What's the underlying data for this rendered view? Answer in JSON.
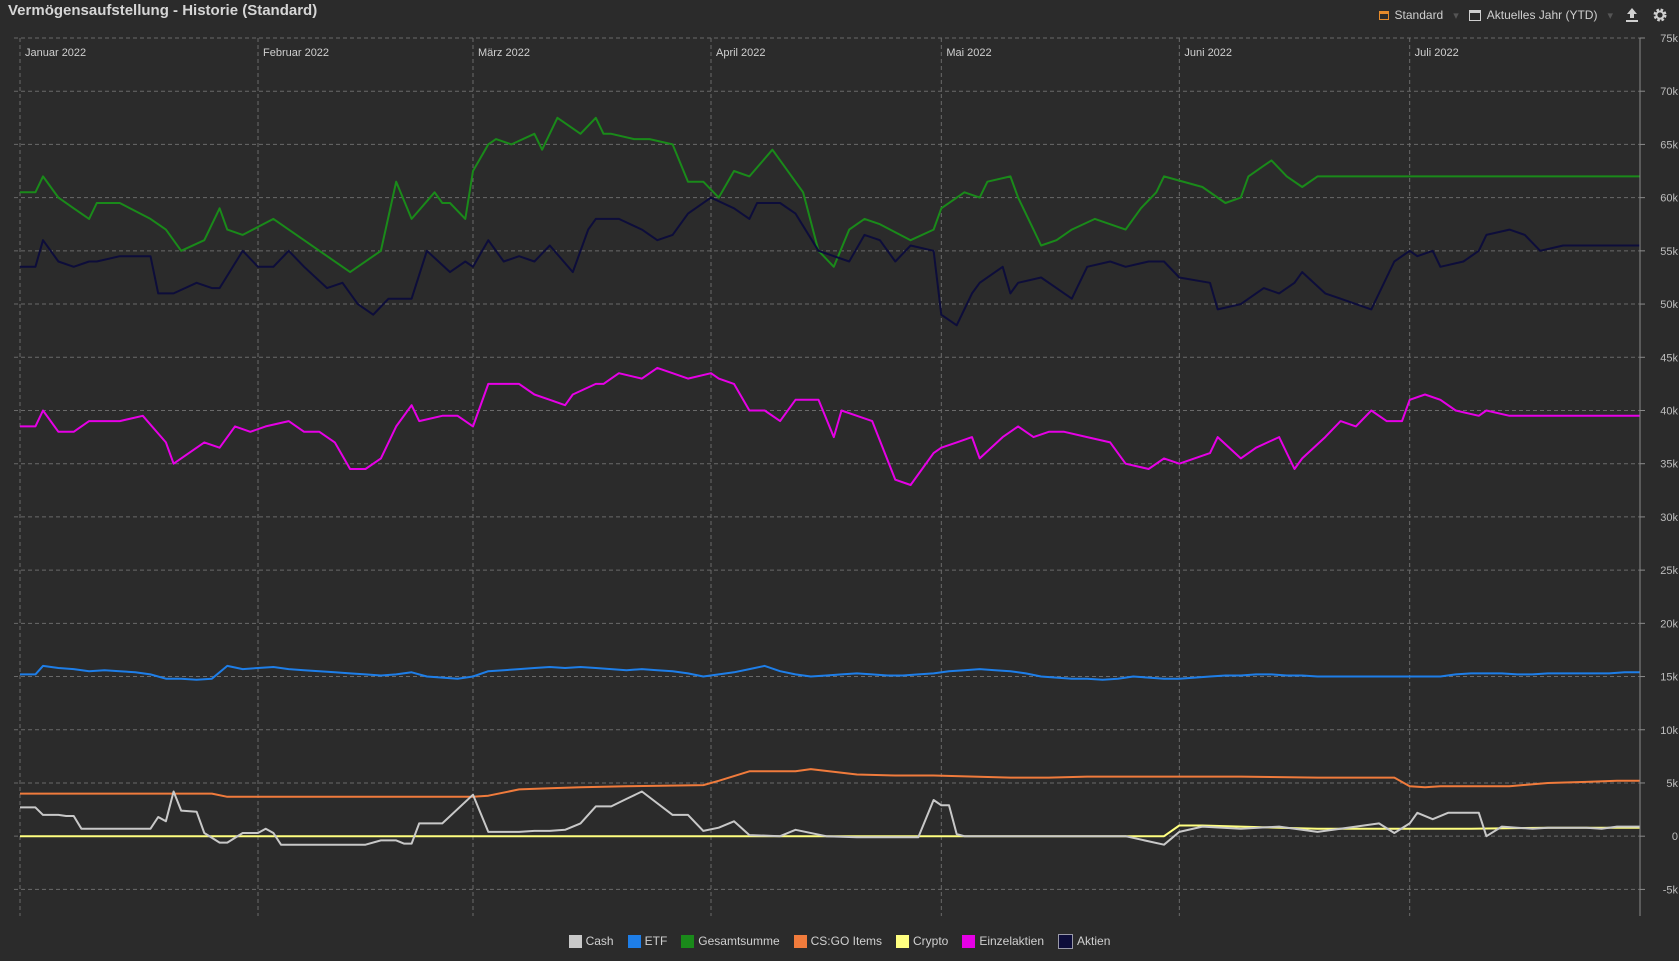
{
  "header": {
    "title": "Vermögensaufstellung - Historie (Standard)",
    "view_label": "Standard",
    "period_label": "Aktuelles Jahr (YTD)",
    "export_icon": "upload-icon",
    "settings_icon": "gear-icon"
  },
  "colors": {
    "background": "#2b2b2b",
    "grid": "#6a6a6a",
    "accent": "#e58a2b"
  },
  "chart_data": {
    "type": "line",
    "title": "Vermögensaufstellung - Historie (Standard)",
    "x_unit": "day of year 2022",
    "x_range": [
      1,
      212
    ],
    "ylim": [
      -7500,
      75000
    ],
    "yticks": [
      -5000,
      0,
      5000,
      10000,
      15000,
      20000,
      25000,
      30000,
      35000,
      40000,
      45000,
      50000,
      55000,
      60000,
      65000,
      70000,
      75000
    ],
    "ytick_labels": [
      "-5k",
      "0",
      "5k",
      "10k",
      "15k",
      "20k",
      "25k",
      "30k",
      "35k",
      "40k",
      "45k",
      "50k",
      "55k",
      "60k",
      "65k",
      "70k",
      "75k"
    ],
    "months": [
      {
        "label": "Januar 2022",
        "day": 1
      },
      {
        "label": "Februar 2022",
        "day": 32
      },
      {
        "label": "März 2022",
        "day": 60
      },
      {
        "label": "April 2022",
        "day": 91
      },
      {
        "label": "Mai 2022",
        "day": 121
      },
      {
        "label": "Juni 2022",
        "day": 152
      },
      {
        "label": "Juli 2022",
        "day": 182
      }
    ],
    "grid": true,
    "legend_position": "bottom-center",
    "series": [
      {
        "name": "Gesamtsumme",
        "color": "#1a8a1a",
        "x": [
          1,
          3,
          4,
          6,
          8,
          10,
          11,
          14,
          18,
          20,
          22,
          25,
          27,
          28,
          30,
          34,
          36,
          38,
          40,
          44,
          48,
          50,
          52,
          55,
          56,
          57,
          59,
          60,
          62,
          63,
          65,
          68,
          69,
          71,
          74,
          76,
          77,
          78,
          81,
          83,
          86,
          88,
          90,
          92,
          94,
          96,
          99,
          103,
          105,
          107,
          109,
          111,
          113,
          117,
          120,
          121,
          124,
          126,
          127,
          130,
          131,
          133,
          134,
          136,
          138,
          141,
          145,
          147,
          149,
          150,
          155,
          158,
          160,
          161,
          163,
          164,
          166,
          168,
          170,
          173,
          174,
          176,
          178,
          181,
          182,
          184,
          186,
          189,
          191,
          192,
          194,
          195,
          197,
          199,
          202,
          205,
          207,
          209,
          211,
          212
        ],
        "y": [
          60500,
          60500,
          62000,
          60000,
          59000,
          58000,
          59500,
          59500,
          58000,
          57000,
          55000,
          56000,
          59000,
          57000,
          56500,
          58000,
          57000,
          56000,
          55000,
          53000,
          55000,
          61500,
          58000,
          60500,
          59500,
          59500,
          58000,
          62500,
          65000,
          65500,
          65000,
          66000,
          64500,
          67500,
          66000,
          67500,
          66000,
          66000,
          65500,
          65500,
          65000,
          61500,
          61500,
          60000,
          62500,
          62000,
          64500,
          60500,
          55000,
          53500,
          57000,
          58000,
          57500,
          56000,
          57000,
          59000,
          60500,
          60000,
          61500,
          62000,
          60000,
          57000,
          55500,
          56000,
          57000,
          58000,
          57000,
          59000,
          60500,
          62000,
          61000,
          59500,
          60000,
          62000,
          63000,
          63500,
          62000,
          61000,
          62000,
          62000,
          62000,
          62000,
          62000,
          62000,
          62000,
          62000,
          62000,
          62000,
          62000,
          62000,
          62000,
          62000,
          62000,
          62000,
          62000,
          62000,
          62000,
          62000,
          62000,
          62000
        ]
      },
      {
        "name": "Aktien",
        "color": "#0d0d3a",
        "x": [
          1,
          3,
          4,
          6,
          8,
          10,
          11,
          14,
          18,
          19,
          21,
          24,
          26,
          27,
          30,
          32,
          34,
          36,
          38,
          41,
          43,
          45,
          47,
          49,
          52,
          54,
          57,
          59,
          60,
          62,
          64,
          66,
          68,
          70,
          73,
          75,
          76,
          79,
          82,
          84,
          86,
          88,
          91,
          94,
          96,
          97,
          100,
          102,
          105,
          109,
          111,
          113,
          115,
          117,
          120,
          121,
          123,
          125,
          126,
          129,
          130,
          131,
          134,
          136,
          138,
          140,
          143,
          145,
          148,
          150,
          152,
          156,
          157,
          160,
          163,
          165,
          167,
          168,
          171,
          173,
          175,
          177,
          179,
          180,
          182,
          183,
          185,
          186,
          189,
          191,
          192,
          195,
          197,
          199,
          202,
          205,
          207,
          209,
          211,
          212
        ],
        "y": [
          53500,
          53500,
          56000,
          54000,
          53500,
          54000,
          54000,
          54500,
          54500,
          51000,
          51000,
          52000,
          51500,
          51500,
          55000,
          53500,
          53500,
          55000,
          53500,
          51500,
          52000,
          50000,
          49000,
          50500,
          50500,
          55000,
          53000,
          54000,
          53500,
          56000,
          54000,
          54500,
          54000,
          55500,
          53000,
          57000,
          58000,
          58000,
          57000,
          56000,
          56500,
          58500,
          60000,
          59000,
          58000,
          59500,
          59500,
          58500,
          55000,
          54000,
          56500,
          56000,
          54000,
          55500,
          55000,
          49000,
          48000,
          51000,
          52000,
          53500,
          51000,
          52000,
          52500,
          51500,
          50500,
          53500,
          54000,
          53500,
          54000,
          54000,
          52500,
          52000,
          49500,
          50000,
          51500,
          51000,
          52000,
          53000,
          51000,
          50500,
          50000,
          49500,
          52500,
          54000,
          55000,
          54500,
          55000,
          53500,
          54000,
          55000,
          56500,
          57000,
          56500,
          55000,
          55500,
          55500,
          55500,
          55500,
          55500,
          55500
        ]
      },
      {
        "name": "Einzelaktien",
        "color": "#e600e6",
        "x": [
          1,
          3,
          4,
          6,
          8,
          10,
          12,
          14,
          17,
          20,
          21,
          23,
          25,
          27,
          29,
          31,
          33,
          36,
          38,
          40,
          42,
          44,
          46,
          48,
          50,
          52,
          53,
          56,
          58,
          60,
          62,
          64,
          66,
          68,
          70,
          72,
          73,
          76,
          77,
          79,
          82,
          84,
          86,
          88,
          91,
          92,
          94,
          96,
          98,
          100,
          102,
          105,
          107,
          108,
          110,
          112,
          115,
          117,
          120,
          121,
          123,
          125,
          126,
          129,
          131,
          133,
          135,
          137,
          140,
          143,
          145,
          148,
          150,
          152,
          156,
          157,
          160,
          162,
          165,
          167,
          168,
          171,
          173,
          175,
          177,
          179,
          181,
          182,
          184,
          186,
          188,
          191,
          192,
          195,
          197,
          199,
          202,
          205,
          207,
          209,
          211,
          212
        ],
        "y": [
          38500,
          38500,
          40000,
          38000,
          38000,
          39000,
          39000,
          39000,
          39500,
          37000,
          35000,
          36000,
          37000,
          36500,
          38500,
          38000,
          38500,
          39000,
          38000,
          38000,
          37000,
          34500,
          34500,
          35500,
          38500,
          40500,
          39000,
          39500,
          39500,
          38500,
          42500,
          42500,
          42500,
          41500,
          41000,
          40500,
          41500,
          42500,
          42500,
          43500,
          43000,
          44000,
          43500,
          43000,
          43500,
          43000,
          42500,
          40000,
          40000,
          39000,
          41000,
          41000,
          37500,
          40000,
          39500,
          39000,
          33500,
          33000,
          36000,
          36500,
          37000,
          37500,
          35500,
          37500,
          38500,
          37500,
          38000,
          38000,
          37500,
          37000,
          35000,
          34500,
          35500,
          35000,
          36000,
          37500,
          35500,
          36500,
          37500,
          34500,
          35500,
          37500,
          39000,
          38500,
          40000,
          39000,
          39000,
          41000,
          41500,
          41000,
          40000,
          39500,
          40000,
          39500,
          39500,
          39500,
          39500,
          39500,
          39500,
          39500,
          39500,
          39500
        ]
      },
      {
        "name": "ETF",
        "color": "#1e7ee8",
        "x": [
          1,
          3,
          4,
          6,
          8,
          10,
          12,
          14,
          16,
          18,
          20,
          22,
          24,
          26,
          28,
          30,
          32,
          34,
          36,
          38,
          40,
          42,
          44,
          46,
          48,
          50,
          52,
          54,
          56,
          58,
          60,
          62,
          64,
          66,
          68,
          70,
          72,
          74,
          76,
          78,
          80,
          82,
          84,
          86,
          88,
          90,
          92,
          94,
          96,
          98,
          100,
          102,
          104,
          106,
          108,
          110,
          112,
          114,
          116,
          118,
          120,
          122,
          124,
          126,
          128,
          130,
          132,
          134,
          136,
          138,
          140,
          142,
          144,
          146,
          148,
          150,
          152,
          154,
          156,
          158,
          160,
          162,
          164,
          166,
          168,
          170,
          172,
          174,
          176,
          178,
          180,
          182,
          184,
          186,
          188,
          190,
          192,
          194,
          196,
          198,
          200,
          202,
          204,
          206,
          208,
          210,
          212
        ],
        "y": [
          15200,
          15200,
          16000,
          15800,
          15700,
          15500,
          15600,
          15500,
          15400,
          15200,
          14800,
          14800,
          14700,
          14800,
          16000,
          15700,
          15800,
          15900,
          15700,
          15600,
          15500,
          15400,
          15300,
          15200,
          15100,
          15200,
          15400,
          15000,
          14900,
          14800,
          15000,
          15500,
          15600,
          15700,
          15800,
          15900,
          15800,
          15900,
          15800,
          15700,
          15600,
          15700,
          15600,
          15500,
          15300,
          15000,
          15200,
          15400,
          15700,
          16000,
          15500,
          15200,
          15000,
          15100,
          15200,
          15300,
          15200,
          15100,
          15100,
          15200,
          15300,
          15500,
          15600,
          15700,
          15600,
          15500,
          15300,
          15000,
          14900,
          14800,
          14800,
          14700,
          14800,
          15000,
          14900,
          14800,
          14800,
          14900,
          15000,
          15100,
          15100,
          15200,
          15200,
          15100,
          15100,
          15000,
          15000,
          15000,
          15000,
          15000,
          15000,
          15000,
          15000,
          15000,
          15200,
          15300,
          15300,
          15300,
          15200,
          15200,
          15300,
          15300,
          15300,
          15300,
          15300,
          15400,
          15400
        ]
      },
      {
        "name": "CS:GO Items",
        "color": "#f07b3c",
        "x": [
          1,
          10,
          20,
          26,
          28,
          40,
          52,
          60,
          62,
          66,
          70,
          74,
          80,
          90,
          92,
          96,
          100,
          102,
          104,
          110,
          115,
          120,
          130,
          135,
          140,
          150,
          160,
          170,
          180,
          182,
          184,
          186,
          190,
          195,
          200,
          205,
          209,
          212
        ],
        "y": [
          4000,
          4000,
          4000,
          4000,
          3700,
          3700,
          3700,
          3700,
          3800,
          4400,
          4500,
          4600,
          4700,
          4800,
          5200,
          6100,
          6100,
          6100,
          6300,
          5800,
          5700,
          5700,
          5500,
          5500,
          5600,
          5600,
          5600,
          5500,
          5500,
          4700,
          4600,
          4700,
          4700,
          4700,
          5000,
          5100,
          5200,
          5200
        ]
      },
      {
        "name": "Crypto",
        "color": "#ffff80",
        "x": [
          1,
          20,
          40,
          60,
          80,
          100,
          120,
          140,
          150,
          152,
          155,
          160,
          165,
          170,
          175,
          180,
          190,
          200,
          205,
          210,
          212
        ],
        "y": [
          0,
          0,
          0,
          0,
          0,
          0,
          0,
          0,
          0,
          1000,
          1000,
          900,
          800,
          700,
          700,
          700,
          700,
          800,
          800,
          800,
          800
        ]
      },
      {
        "name": "Cash",
        "color": "#c8c8c8",
        "x": [
          1,
          3,
          4,
          6,
          7,
          8,
          9,
          10,
          14,
          18,
          19,
          20,
          21,
          22,
          24,
          25,
          27,
          28,
          30,
          32,
          33,
          34,
          35,
          36,
          40,
          46,
          48,
          50,
          51,
          52,
          53,
          56,
          60,
          62,
          64,
          66,
          68,
          70,
          72,
          74,
          76,
          78,
          80,
          82,
          86,
          88,
          90,
          92,
          94,
          96,
          100,
          102,
          106,
          110,
          118,
          120,
          121,
          122,
          123,
          124,
          126,
          130,
          135,
          140,
          145,
          150,
          152,
          155,
          160,
          165,
          170,
          175,
          178,
          180,
          182,
          183,
          185,
          187,
          189,
          190,
          191,
          192,
          194,
          196,
          198,
          200,
          202,
          205,
          207,
          209,
          211,
          212
        ],
        "y": [
          2700,
          2700,
          2000,
          2000,
          1900,
          1900,
          700,
          700,
          700,
          700,
          1800,
          1400,
          4200,
          2400,
          2300,
          300,
          -600,
          -600,
          300,
          300,
          700,
          300,
          -800,
          -800,
          -800,
          -800,
          -400,
          -400,
          -700,
          -700,
          1200,
          1200,
          3900,
          400,
          400,
          400,
          500,
          500,
          600,
          1200,
          2800,
          2800,
          3500,
          4200,
          2000,
          2000,
          500,
          800,
          1400,
          100,
          0,
          600,
          0,
          -100,
          -100,
          3400,
          2900,
          2900,
          200,
          0,
          0,
          0,
          0,
          0,
          0,
          -800,
          400,
          900,
          700,
          900,
          400,
          900,
          1200,
          300,
          1200,
          2200,
          1600,
          2200,
          2200,
          2200,
          2200,
          0,
          900,
          800,
          700,
          800,
          800,
          800,
          700,
          900,
          900,
          900
        ]
      }
    ]
  }
}
